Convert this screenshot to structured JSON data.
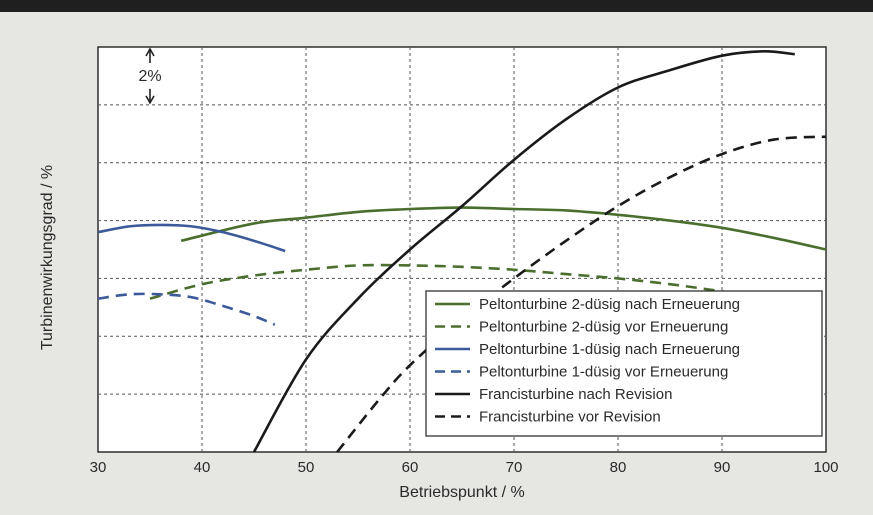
{
  "chart_data": {
    "type": "line",
    "xlabel": "Betriebspunkt / %",
    "ylabel": "Turbinenwirkungsgrad / %",
    "xlim": [
      30,
      100
    ],
    "ylim": [
      0,
      14
    ],
    "x_ticks": [
      30,
      40,
      50,
      60,
      70,
      80,
      90,
      100
    ],
    "y_grid_step": 2,
    "grid": true,
    "legend_position": "bottom-right",
    "annotation": {
      "text": "2%",
      "x": 35,
      "y_from": 12,
      "y_to": 14
    },
    "series": [
      {
        "name": "Peltonturbine 2-düsig nach Erneuerung",
        "color": "#4b6e2e",
        "dash": "solid",
        "x": [
          38,
          45,
          50,
          55,
          60,
          65,
          70,
          75,
          80,
          85,
          90,
          95,
          100
        ],
        "y": [
          7.3,
          7.9,
          8.1,
          8.3,
          8.4,
          8.45,
          8.4,
          8.35,
          8.2,
          8.0,
          7.75,
          7.4,
          7.0
        ]
      },
      {
        "name": "Peltonturbine 2-düsig vor Erneuerung",
        "color": "#4b6e2e",
        "dash": "dashed",
        "x": [
          35,
          40,
          45,
          50,
          55,
          60,
          65,
          70,
          75,
          80,
          85,
          90,
          95
        ],
        "y": [
          5.3,
          5.8,
          6.1,
          6.3,
          6.45,
          6.45,
          6.4,
          6.3,
          6.15,
          6.0,
          5.8,
          5.55,
          5.25
        ]
      },
      {
        "name": "Peltonturbine 1-düsig nach Erneuerung",
        "color": "#3c5a9a",
        "dash": "solid",
        "x": [
          30,
          33,
          36,
          39,
          42,
          45,
          48
        ],
        "y": [
          7.6,
          7.8,
          7.85,
          7.8,
          7.6,
          7.3,
          6.95
        ]
      },
      {
        "name": "Peltonturbine 1-düsig vor Erneuerung",
        "color": "#3c5a9a",
        "dash": "dashed",
        "x": [
          30,
          33,
          36,
          39,
          42,
          45,
          47
        ],
        "y": [
          5.3,
          5.45,
          5.45,
          5.35,
          5.05,
          4.7,
          4.4
        ]
      },
      {
        "name": "Francisturbine nach Revision",
        "color": "#1a1a1a",
        "dash": "solid",
        "x": [
          45,
          50,
          55,
          60,
          65,
          70,
          75,
          80,
          85,
          90,
          94,
          97
        ],
        "y": [
          0,
          3.2,
          5.3,
          7.0,
          8.5,
          10.1,
          11.5,
          12.6,
          13.2,
          13.7,
          13.85,
          13.75
        ]
      },
      {
        "name": "Francisturbine vor Revision",
        "color": "#1a1a1a",
        "dash": "dashed",
        "x": [
          53,
          57,
          60,
          65,
          70,
          75,
          80,
          85,
          90,
          95,
          100
        ],
        "y": [
          0,
          1.8,
          3.0,
          4.6,
          6.0,
          7.3,
          8.5,
          9.5,
          10.3,
          10.8,
          10.9
        ]
      }
    ]
  }
}
